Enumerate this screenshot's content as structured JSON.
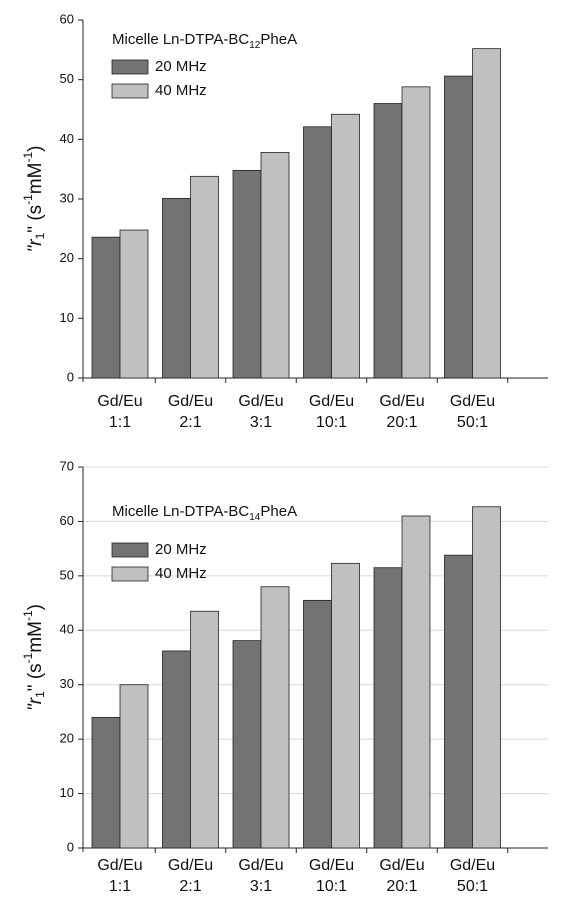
{
  "chart_data": [
    {
      "type": "bar",
      "title": [
        "Micelle Ln-DTPA-BC",
        "12",
        "PheA"
      ],
      "ylabel": [
        "\"r",
        "1",
        "\" (s",
        "-1",
        "mM",
        "-1",
        ")"
      ],
      "categories": [
        [
          "Gd/Eu",
          "1:1"
        ],
        [
          "Gd/Eu",
          "2:1"
        ],
        [
          "Gd/Eu",
          "3:1"
        ],
        [
          "Gd/Eu",
          "10:1"
        ],
        [
          "Gd/Eu",
          "20:1"
        ],
        [
          "Gd/Eu",
          "50:1"
        ]
      ],
      "series": [
        {
          "name": "20 MHz",
          "color": "#737373",
          "values": [
            23.6,
            30.1,
            34.8,
            42.1,
            46.0,
            50.6
          ]
        },
        {
          "name": "40 MHz",
          "color": "#c0c0c0",
          "values": [
            24.8,
            33.8,
            37.8,
            44.2,
            48.8,
            55.2
          ]
        }
      ],
      "ylim": [
        0,
        60
      ],
      "yticks": [
        0,
        10,
        20,
        30,
        40,
        50,
        60
      ],
      "grid": false
    },
    {
      "type": "bar",
      "title": [
        "Micelle Ln-DTPA-BC",
        "14",
        "PheA"
      ],
      "ylabel": [
        "\"r",
        "1",
        "\" (s",
        "-1",
        "mM",
        "-1",
        ")"
      ],
      "categories": [
        [
          "Gd/Eu",
          "1:1"
        ],
        [
          "Gd/Eu",
          "2:1"
        ],
        [
          "Gd/Eu",
          "3:1"
        ],
        [
          "Gd/Eu",
          "10:1"
        ],
        [
          "Gd/Eu",
          "20:1"
        ],
        [
          "Gd/Eu",
          "50:1"
        ]
      ],
      "series": [
        {
          "name": "20 MHz",
          "color": "#737373",
          "values": [
            24.0,
            36.2,
            38.1,
            45.5,
            51.5,
            53.8
          ]
        },
        {
          "name": "40 MHz",
          "color": "#c0c0c0",
          "values": [
            30.0,
            43.5,
            48.0,
            52.3,
            61.0,
            62.7
          ]
        }
      ],
      "ylim": [
        0,
        70
      ],
      "yticks": [
        0,
        10,
        20,
        30,
        40,
        50,
        60,
        70
      ],
      "grid": true
    }
  ]
}
